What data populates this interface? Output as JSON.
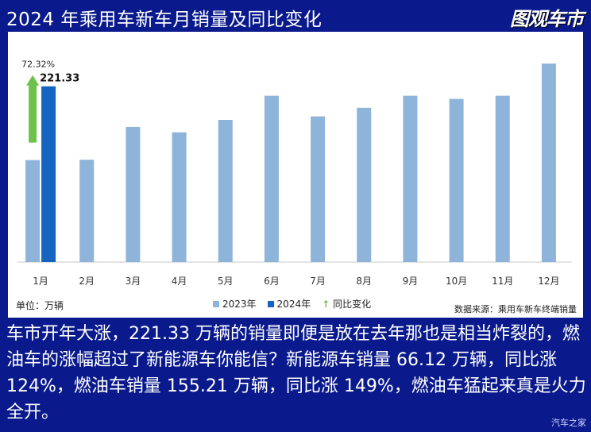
{
  "header": {
    "title": "2024 年乘用车新车月销量及同比变化",
    "brand": "图观车市"
  },
  "chart_data": {
    "type": "bar",
    "title": "2024 年乘用车新车月销量及同比变化",
    "categories": [
      "1月",
      "2月",
      "3月",
      "4月",
      "5月",
      "6月",
      "7月",
      "8月",
      "9月",
      "10月",
      "11月",
      "12月"
    ],
    "series": [
      {
        "name": "2023年",
        "color": "#8fb4da",
        "values": [
          128.4,
          128.9,
          170.1,
          163.4,
          179.0,
          209.4,
          183.4,
          194.2,
          209.4,
          205.5,
          209.4,
          250.0
        ]
      },
      {
        "name": "2024年",
        "color": "#1565c0",
        "values": [
          221.33,
          null,
          null,
          null,
          null,
          null,
          null,
          null,
          null,
          null,
          null,
          null
        ]
      }
    ],
    "data_labels": {
      "2024年_1月": "221.33"
    },
    "yoy": {
      "name": "同比变化",
      "color": "#6cc24a",
      "value_label": "72.32%",
      "value": 72.32
    },
    "ylim": [
      0,
      270
    ],
    "legend_position": "bottom",
    "grid": false,
    "unit_label": "单位：万辆",
    "source_label": "数据来源：乘用车新车终端销量"
  },
  "caption": "车市开年大涨，221.33 万辆的销量即便是放在去年那也是相当炸裂的，燃油车的涨幅超过了新能源车你能信？新能源车销量 66.12 万辆，同比涨 124%，燃油车销量 155.21 万辆，同比涨 149%，燃油车猛起来真是火力全开。",
  "watermark": "汽车之家"
}
